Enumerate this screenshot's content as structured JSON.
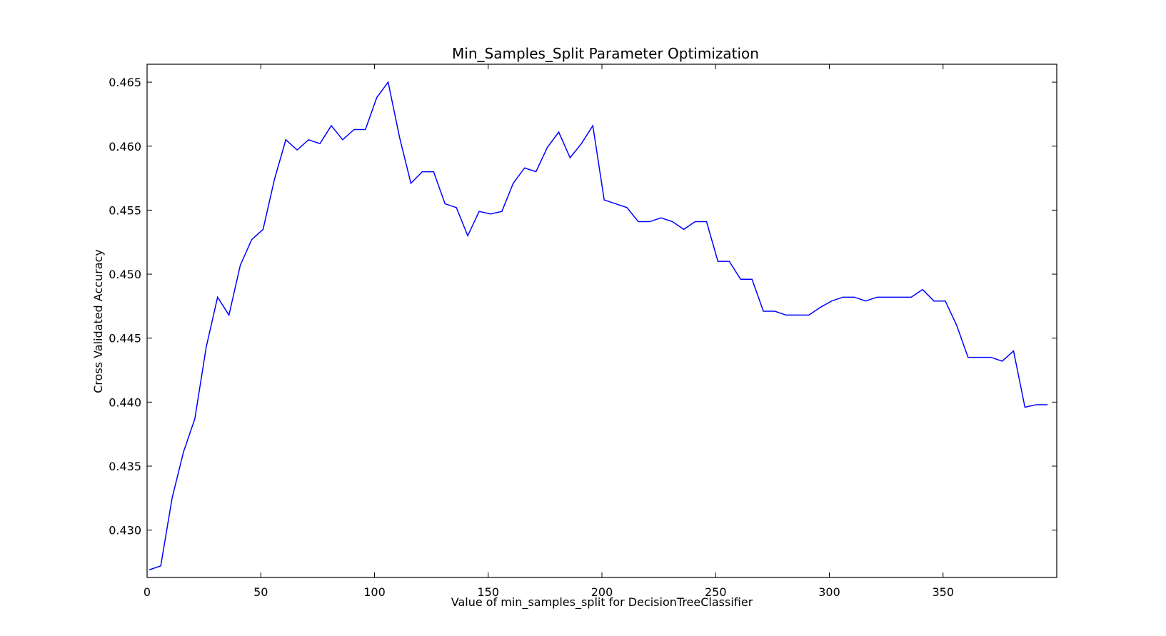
{
  "chart_data": {
    "type": "line",
    "title": "Min_Samples_Split  Parameter Optimization",
    "xlabel": "Value of min_samples_split for DecisionTreeClassifier",
    "ylabel": "Cross Validated Accuracy",
    "xlim": [
      0,
      400
    ],
    "ylim": [
      0.4263,
      0.4664
    ],
    "xticks": [
      0,
      50,
      100,
      150,
      200,
      250,
      300,
      350
    ],
    "yticks": [
      0.43,
      0.435,
      0.44,
      0.445,
      0.45,
      0.455,
      0.46,
      0.465
    ],
    "ytick_labels": [
      "0.430",
      "0.435",
      "0.440",
      "0.445",
      "0.450",
      "0.455",
      "0.460",
      "0.465"
    ],
    "grid": false,
    "line_color": "#0000ff",
    "series": [
      {
        "x": [
          1,
          6,
          11,
          16,
          21,
          26,
          31,
          36,
          41,
          46,
          51,
          56,
          61,
          66,
          71,
          76,
          81,
          86,
          91,
          96,
          101,
          106,
          111,
          116,
          121,
          126,
          131,
          136,
          141,
          146,
          151,
          156,
          161,
          166,
          171,
          176,
          181,
          186,
          191,
          196,
          201,
          206,
          211,
          216,
          221,
          226,
          231,
          236,
          241,
          246,
          251,
          256,
          261,
          266,
          271,
          276,
          281,
          286,
          291,
          296,
          301,
          306,
          311,
          316,
          321,
          326,
          331,
          336,
          341,
          346,
          351,
          356,
          361,
          366,
          371,
          376,
          381,
          386,
          391,
          396
        ],
        "values": [
          0.4269,
          0.4272,
          0.4325,
          0.4361,
          0.4387,
          0.4443,
          0.4482,
          0.4468,
          0.4507,
          0.4527,
          0.4535,
          0.4574,
          0.4605,
          0.4597,
          0.4605,
          0.4602,
          0.4616,
          0.4605,
          0.4613,
          0.4613,
          0.4638,
          0.465,
          0.4607,
          0.4571,
          0.458,
          0.458,
          0.4555,
          0.4552,
          0.453,
          0.4549,
          0.4547,
          0.4549,
          0.4571,
          0.4583,
          0.458,
          0.4599,
          0.4611,
          0.4591,
          0.4602,
          0.4616,
          0.4558,
          0.4555,
          0.4552,
          0.4541,
          0.4541,
          0.4544,
          0.4541,
          0.4535,
          0.4541,
          0.4541,
          0.451,
          0.451,
          0.4496,
          0.4496,
          0.4471,
          0.4471,
          0.4468,
          0.4468,
          0.4468,
          0.4474,
          0.4479,
          0.4482,
          0.4482,
          0.4479,
          0.4482,
          0.4482,
          0.4482,
          0.4482,
          0.4488,
          0.4479,
          0.4479,
          0.446,
          0.4435,
          0.4435,
          0.4435,
          0.4432,
          0.444,
          0.4396,
          0.4398,
          0.4398
        ]
      }
    ]
  }
}
